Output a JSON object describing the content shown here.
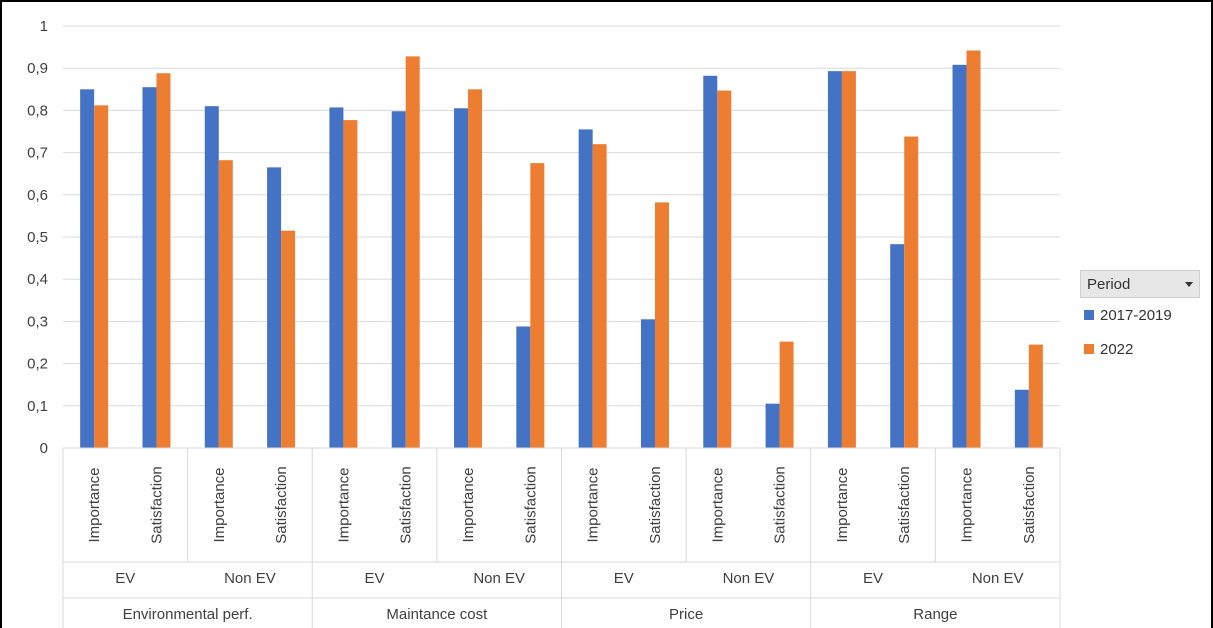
{
  "chart_data": {
    "type": "bar",
    "yticks": [
      "0",
      "0,1",
      "0,2",
      "0,3",
      "0,4",
      "0,5",
      "0,6",
      "0,7",
      "0,8",
      "0,9",
      "1"
    ],
    "ylim": [
      0,
      1
    ],
    "grid": true,
    "legend_placement": "right",
    "groups": [
      {
        "label": "Environmental perf.",
        "subgroups": [
          {
            "label": "EV",
            "categories": [
              "Importance",
              "Satisfaction"
            ]
          },
          {
            "label": "Non EV",
            "categories": [
              "Importance",
              "Satisfaction"
            ]
          }
        ]
      },
      {
        "label": "Maintance cost",
        "subgroups": [
          {
            "label": "EV",
            "categories": [
              "Importance",
              "Satisfaction"
            ]
          },
          {
            "label": "Non EV",
            "categories": [
              "Importance",
              "Satisfaction"
            ]
          }
        ]
      },
      {
        "label": "Price",
        "subgroups": [
          {
            "label": "EV",
            "categories": [
              "Importance",
              "Satisfaction"
            ]
          },
          {
            "label": "Non EV",
            "categories": [
              "Importance",
              "Satisfaction"
            ]
          }
        ]
      },
      {
        "label": "Range",
        "subgroups": [
          {
            "label": "EV",
            "categories": [
              "Importance",
              "Satisfaction"
            ]
          },
          {
            "label": "Non EV",
            "categories": [
              "Importance",
              "Satisfaction"
            ]
          }
        ]
      }
    ],
    "series": [
      {
        "name": "2017-2019",
        "color": "#4472c4",
        "values": [
          0.85,
          0.855,
          0.81,
          0.665,
          0.807,
          0.798,
          0.805,
          0.288,
          0.755,
          0.305,
          0.882,
          0.105,
          0.893,
          0.483,
          0.908,
          0.138
        ]
      },
      {
        "name": "2022",
        "color": "#ed7d31",
        "values": [
          0.812,
          0.888,
          0.682,
          0.515,
          0.777,
          0.928,
          0.85,
          0.675,
          0.72,
          0.582,
          0.847,
          0.252,
          0.893,
          0.738,
          0.942,
          0.245
        ]
      }
    ]
  },
  "legend": {
    "title": "Period",
    "dropdown_icon": "chevron-down-icon",
    "items": [
      {
        "label": "2017-2019",
        "color": "#4472c4"
      },
      {
        "label": "2022",
        "color": "#ed7d31"
      }
    ]
  }
}
